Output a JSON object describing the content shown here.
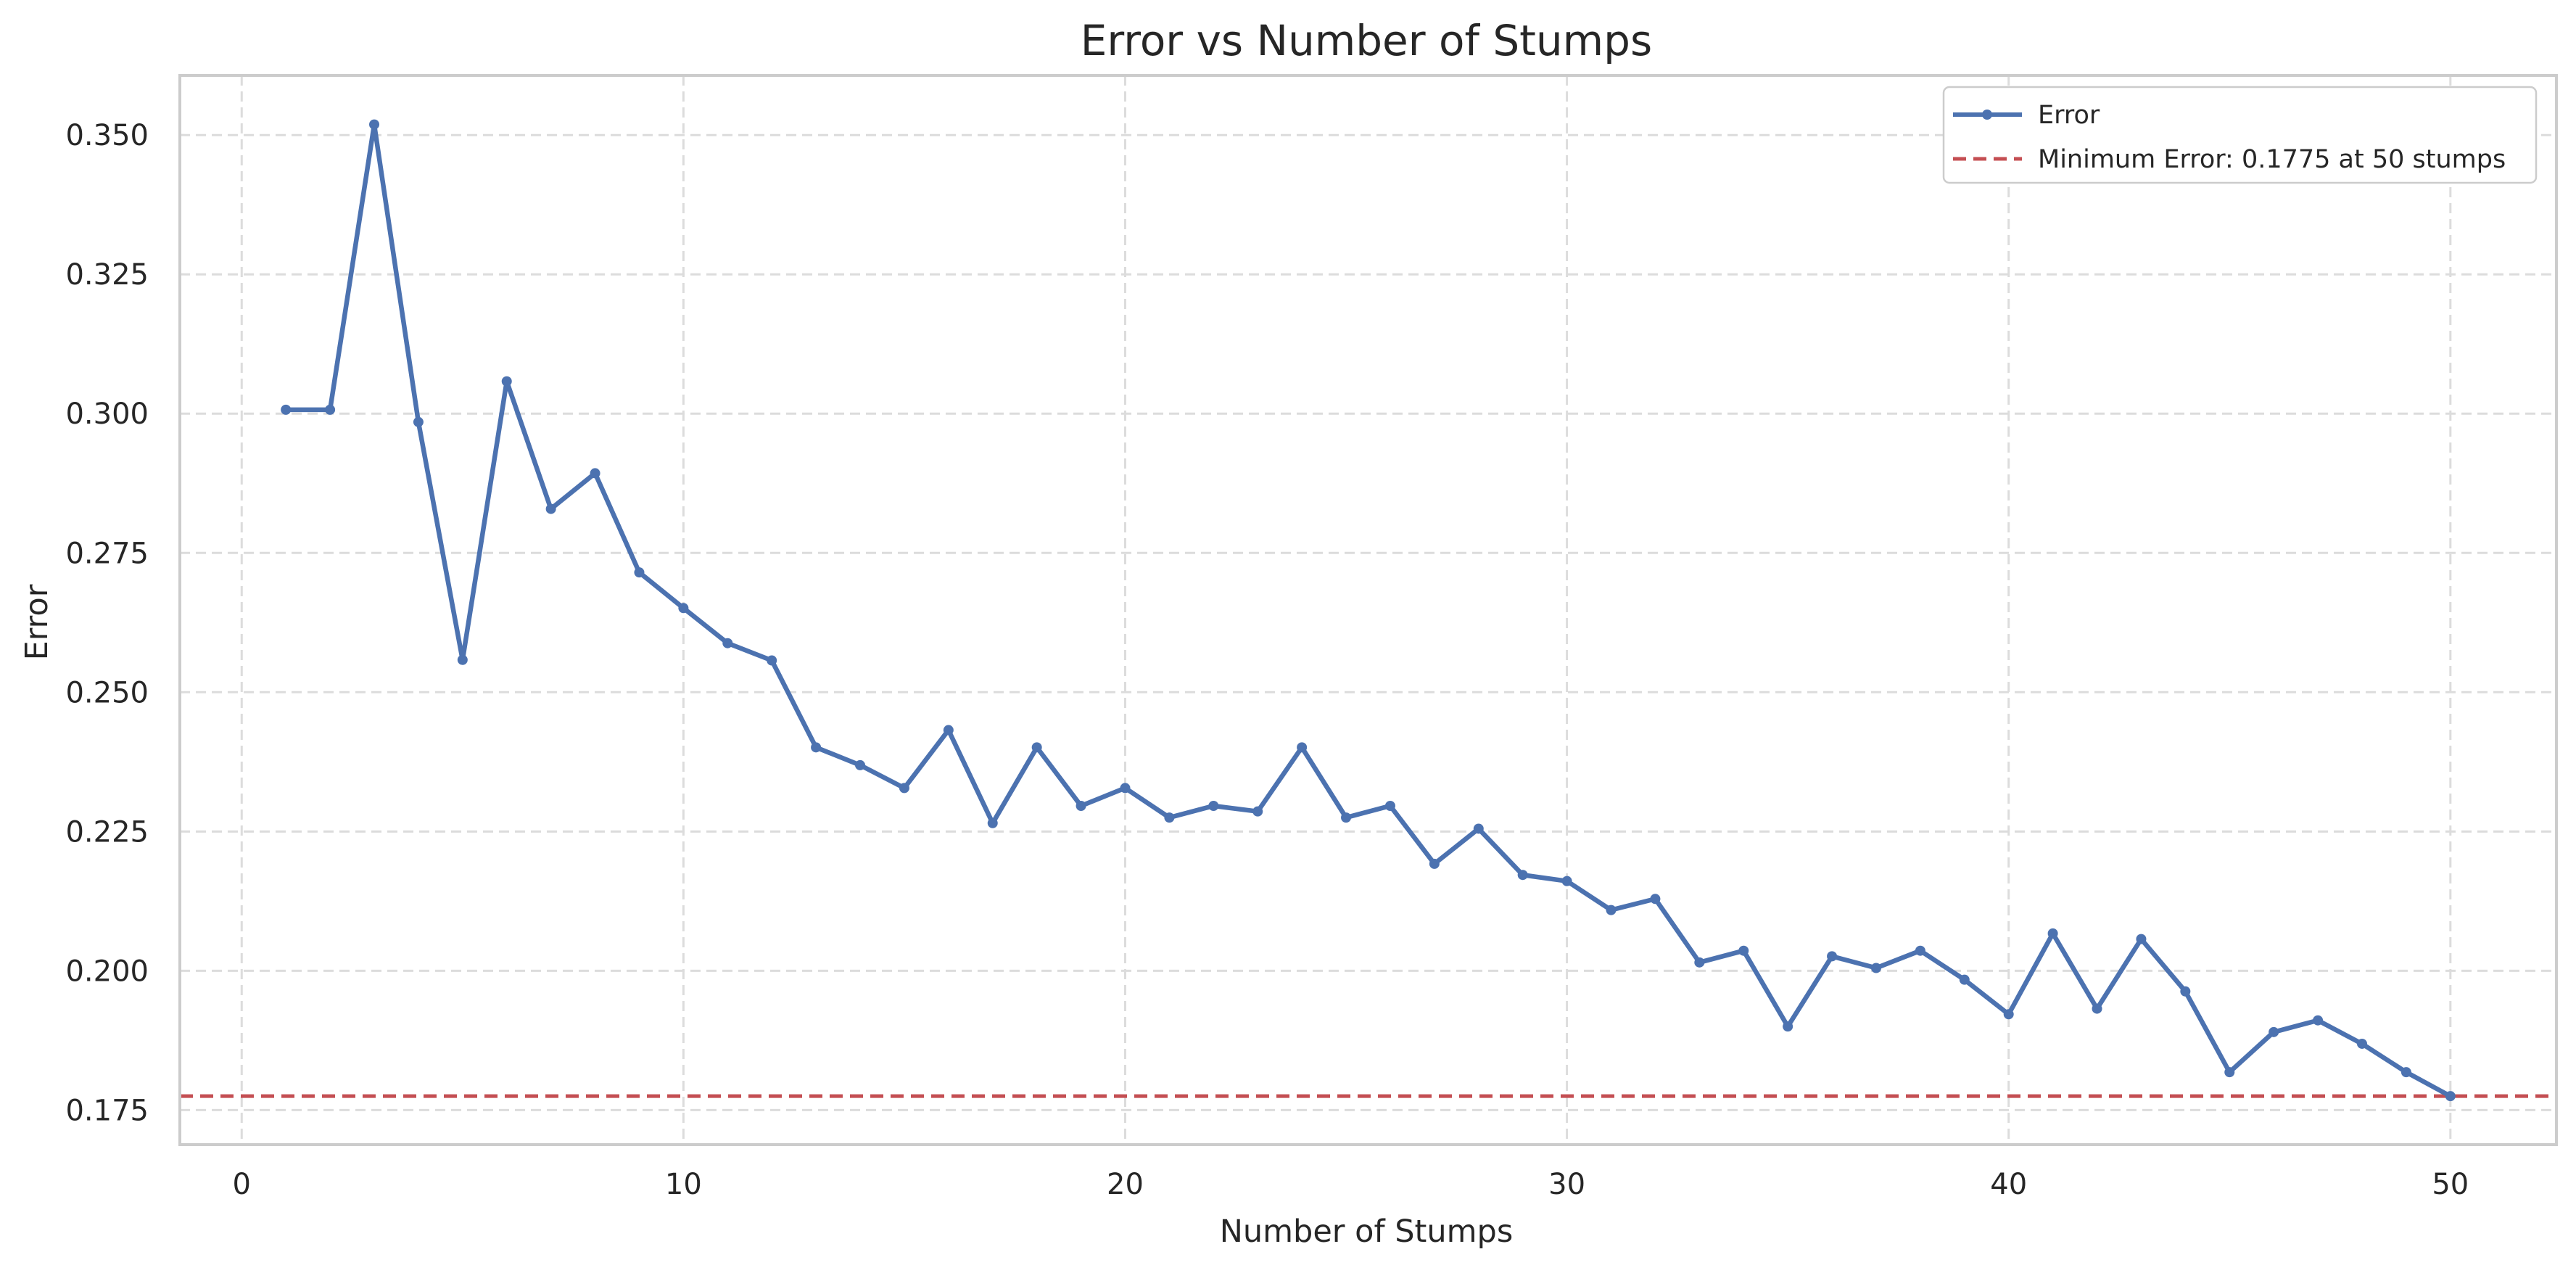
{
  "chart_data": {
    "type": "line",
    "title": "Error vs Number of Stumps",
    "xlabel": "Number of Stumps",
    "ylabel": "Error",
    "xlim": [
      -1.4,
      52.4
    ],
    "ylim": [
      0.1688,
      0.3607
    ],
    "xticks": [
      0,
      10,
      20,
      30,
      40,
      50
    ],
    "yticks": [
      0.175,
      0.2,
      0.225,
      0.25,
      0.275,
      0.3,
      0.325,
      0.35
    ],
    "xtick_labels": [
      "0",
      "10",
      "20",
      "30",
      "40",
      "50"
    ],
    "ytick_labels": [
      "0.175",
      "0.200",
      "0.225",
      "0.250",
      "0.275",
      "0.300",
      "0.325",
      "0.350"
    ],
    "grid": true,
    "legend_position": "top-right",
    "x": [
      1,
      2,
      3,
      4,
      5,
      6,
      7,
      8,
      9,
      10,
      11,
      12,
      13,
      14,
      15,
      16,
      17,
      18,
      19,
      20,
      21,
      22,
      23,
      24,
      25,
      26,
      27,
      28,
      29,
      30,
      31,
      32,
      33,
      34,
      35,
      36,
      37,
      38,
      39,
      40,
      41,
      42,
      43,
      44,
      45,
      46,
      47,
      48,
      49,
      50
    ],
    "series": [
      {
        "name": "Error",
        "color": "#4c72b0",
        "style": "solid-with-markers",
        "values": [
          0.3007,
          0.3007,
          0.3519,
          0.2985,
          0.2558,
          0.3058,
          0.2829,
          0.2893,
          0.2715,
          0.2651,
          0.2588,
          0.2557,
          0.2401,
          0.2369,
          0.2328,
          0.2432,
          0.2265,
          0.2401,
          0.2296,
          0.2328,
          0.2275,
          0.2296,
          0.2286,
          0.2401,
          0.2275,
          0.2296,
          0.2192,
          0.2255,
          0.2172,
          0.2161,
          0.2109,
          0.2129,
          0.2015,
          0.2036,
          0.19,
          0.2026,
          0.2005,
          0.2036,
          0.1984,
          0.1922,
          0.2067,
          0.1932,
          0.2057,
          0.1963,
          0.1818,
          0.189,
          0.1911,
          0.1869,
          0.1818,
          0.1775
        ]
      }
    ],
    "reference_line": {
      "label": "Minimum Error: 0.1775 at 50 stumps",
      "value": 0.1775,
      "color": "#c44e52",
      "style": "dashed"
    }
  }
}
